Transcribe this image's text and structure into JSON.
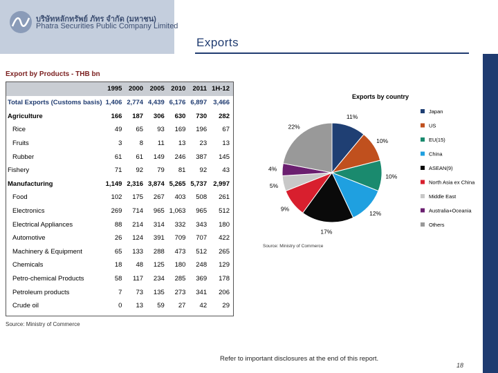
{
  "logo": {
    "thai_name": "บริษัทหลักทรัพย์ ภัทร จำกัด (มหาชน)",
    "english_name": "Phatra Securities Public Company Limited"
  },
  "page": {
    "title": "Exports",
    "disclaimer": "Refer to important disclosures at the end of this report.",
    "page_number": "18"
  },
  "table": {
    "title": "Export by Products - THB bn",
    "source": "Source: Ministry of Commerce",
    "headers": [
      "",
      "1995",
      "2000",
      "2005",
      "2010",
      "2011",
      "1H-12"
    ],
    "rows": [
      {
        "label": "Total Exports (Customs basis)",
        "bold": true,
        "sub": false,
        "values": [
          "1,406",
          "2,774",
          "4,439",
          "6,176",
          "6,897",
          "3,466"
        ]
      },
      {
        "label": "Agriculture",
        "bold": true,
        "sub": false,
        "values": [
          "166",
          "187",
          "306",
          "630",
          "730",
          "282"
        ]
      },
      {
        "label": "Rice",
        "bold": false,
        "sub": true,
        "values": [
          "49",
          "65",
          "93",
          "169",
          "196",
          "67"
        ]
      },
      {
        "label": "Fruits",
        "bold": false,
        "sub": true,
        "values": [
          "3",
          "8",
          "11",
          "13",
          "23",
          "13"
        ]
      },
      {
        "label": "Rubber",
        "bold": false,
        "sub": true,
        "values": [
          "61",
          "61",
          "149",
          "246",
          "387",
          "145"
        ]
      },
      {
        "label": "Fishery",
        "bold": false,
        "sub": false,
        "values": [
          "71",
          "92",
          "79",
          "81",
          "92",
          "43"
        ]
      },
      {
        "label": "Manufacturing",
        "bold": true,
        "sub": false,
        "values": [
          "1,149",
          "2,316",
          "3,874",
          "5,265",
          "5,737",
          "2,997"
        ]
      },
      {
        "label": "Food",
        "bold": false,
        "sub": true,
        "values": [
          "102",
          "175",
          "267",
          "403",
          "508",
          "261"
        ]
      },
      {
        "label": "Electronics",
        "bold": false,
        "sub": true,
        "values": [
          "269",
          "714",
          "965",
          "1,063",
          "965",
          "512"
        ]
      },
      {
        "label": "Electrical Appliances",
        "bold": false,
        "sub": true,
        "values": [
          "88",
          "214",
          "314",
          "332",
          "343",
          "180"
        ]
      },
      {
        "label": "Automotive",
        "bold": false,
        "sub": true,
        "values": [
          "26",
          "124",
          "391",
          "709",
          "707",
          "422"
        ]
      },
      {
        "label": "Machinery & Equipment",
        "bold": false,
        "sub": true,
        "values": [
          "65",
          "133",
          "288",
          "473",
          "512",
          "265"
        ]
      },
      {
        "label": "Chemicals",
        "bold": false,
        "sub": true,
        "values": [
          "18",
          "48",
          "125",
          "180",
          "248",
          "129"
        ]
      },
      {
        "label": "Petro-chemical Products",
        "bold": false,
        "sub": true,
        "values": [
          "58",
          "117",
          "234",
          "285",
          "369",
          "178"
        ]
      },
      {
        "label": "Petroleum products",
        "bold": false,
        "sub": true,
        "values": [
          "7",
          "73",
          "135",
          "273",
          "341",
          "206"
        ]
      },
      {
        "label": "Crude oil",
        "bold": false,
        "sub": true,
        "values": [
          "0",
          "13",
          "59",
          "27",
          "42",
          "29"
        ]
      }
    ]
  },
  "chart_data": {
    "type": "pie",
    "title": "Exports by country",
    "source": "Source: Ministry of Commerce",
    "slices": [
      {
        "name": "Japan",
        "value": 11,
        "label": "11%",
        "color": "#1f3f73"
      },
      {
        "name": "US",
        "value": 10,
        "label": "10%",
        "color": "#c0501e"
      },
      {
        "name": "EU(15)",
        "value": 10,
        "label": "10%",
        "color": "#1a8a6e"
      },
      {
        "name": "China",
        "value": 12,
        "label": "12%",
        "color": "#1fa0e0"
      },
      {
        "name": "ASEAN(9)",
        "value": 17,
        "label": "17%",
        "color": "#0a0a0a"
      },
      {
        "name": "North Asia ex China",
        "value": 9,
        "label": "9%",
        "color": "#d81f2e"
      },
      {
        "name": "Middle East",
        "value": 5,
        "label": "5%",
        "color": "#c8c8c8"
      },
      {
        "name": "Australia+Oceania",
        "value": 4,
        "label": "4%",
        "color": "#6b1f70"
      },
      {
        "name": "Others",
        "value": 22,
        "label": "22%",
        "color": "#999999"
      }
    ],
    "legend_position": "right"
  }
}
